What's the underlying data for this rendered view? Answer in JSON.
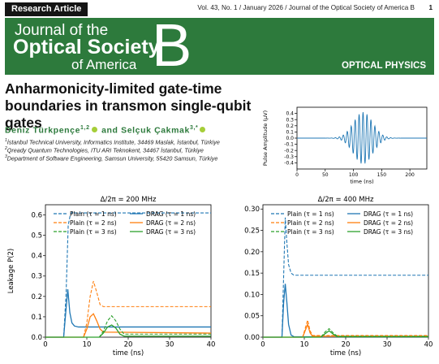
{
  "header": {
    "article_type": "Research Article",
    "running_head": "Vol. 43, No. 1 / January 2026 / Journal of the Optical Society of America B",
    "page_number": "1"
  },
  "banner": {
    "line1": "Journal of the",
    "line2": "Optical Society",
    "line3": "of America",
    "letter": "B",
    "section": "OPTICAL PHYSICS",
    "color": "#2d7a3c"
  },
  "article": {
    "title": "Anharmonicity-limited gate-time boundaries in transmon single-qubit gates",
    "author1": "Deniz Türkpençe",
    "author1_sup": "1,2",
    "connector": "and",
    "author2": "Selçuk Çakmak",
    "author2_sup": "3,*",
    "affiliations": [
      {
        "sup": "1",
        "text": "İstanbul Technical University, Informatics Institute, 34469 Maslak, İstanbul, Türkiye"
      },
      {
        "sup": "2",
        "text": "Qready Quantum Technologies, ITU ARI Teknokent, 34467 İstanbul, Türkiye"
      },
      {
        "sup": "3",
        "text": "Department of Software Engineering, Samsun University, 55420 Samsun, Türkiye"
      }
    ]
  },
  "chart_data": [
    {
      "id": "pulse",
      "type": "line",
      "title": "",
      "xlabel": "time (ns)",
      "ylabel": "Pulse Amplitude (μV)",
      "xlim": [
        0,
        230
      ],
      "ylim": [
        -0.5,
        0.5
      ],
      "xticks": [
        0,
        50,
        100,
        150,
        200
      ],
      "yticks": [
        -0.4,
        -0.3,
        -0.2,
        -0.1,
        0.0,
        0.1,
        0.2,
        0.3,
        0.4
      ],
      "ytick_labels": [
        "-0.4",
        "-0.3",
        "-0.2",
        "-0.1",
        "0.0",
        "0.1",
        "0.2",
        "0.3",
        "0.4"
      ],
      "color": "#1f77b4",
      "series": [
        {
          "carrier_period_ns": 7,
          "center_ns": 117,
          "envelope_sigma_ns": 17,
          "peak_amplitude": 0.42
        }
      ]
    },
    {
      "id": "leak200",
      "type": "line",
      "title": "Δ/2π = 200 MHz",
      "xlabel": "time (ns)",
      "ylabel": "Leakage P(2)",
      "xlim": [
        0,
        40
      ],
      "ylim": [
        0,
        0.65
      ],
      "xticks": [
        0,
        10,
        20,
        30,
        40
      ],
      "yticks": [
        0.0,
        0.1,
        0.2,
        0.3,
        0.4,
        0.5,
        0.6
      ],
      "ytick_labels": [
        "0.0",
        "0.1",
        "0.2",
        "0.3",
        "0.4",
        "0.5",
        "0.6"
      ],
      "legend": [
        "Plain (τ = 1 ns)",
        "DRAG (τ = 1 ns)",
        "Plain (τ = 2 ns)",
        "DRAG (τ = 2 ns)",
        "Plain (τ = 3 ns)",
        "DRAG (τ = 3 ns)"
      ],
      "legend_position": "top",
      "series": [
        {
          "color": "#1f77b4",
          "style": "dashed",
          "x": [
            0,
            4.4,
            5.0,
            5.5,
            6.0,
            6.5,
            7.0,
            40
          ],
          "y": [
            0,
            0,
            0.22,
            0.55,
            0.6,
            0.615,
            0.61,
            0.61
          ]
        },
        {
          "color": "#1f77b4",
          "style": "solid",
          "x": [
            0,
            4.4,
            4.9,
            5.4,
            5.9,
            6.4,
            7.0,
            8.0,
            40
          ],
          "y": [
            0,
            0,
            0.12,
            0.235,
            0.12,
            0.07,
            0.055,
            0.05,
            0.05
          ]
        },
        {
          "color": "#ff7f0e",
          "style": "dashed",
          "x": [
            0,
            9.2,
            10.0,
            10.8,
            11.6,
            12.4,
            13.2,
            14.0,
            40
          ],
          "y": [
            0,
            0,
            0.07,
            0.2,
            0.275,
            0.22,
            0.16,
            0.15,
            0.15
          ]
        },
        {
          "color": "#ff7f0e",
          "style": "solid",
          "x": [
            0,
            9.2,
            10.0,
            10.8,
            11.6,
            12.4,
            13.2,
            14.0,
            40
          ],
          "y": [
            0,
            0,
            0.04,
            0.1,
            0.115,
            0.08,
            0.04,
            0.025,
            0.02
          ]
        },
        {
          "color": "#2ca02c",
          "style": "dashed",
          "x": [
            0,
            13.0,
            14.0,
            15.0,
            16.0,
            17.0,
            18.0,
            19.0,
            40
          ],
          "y": [
            0,
            0,
            0.03,
            0.08,
            0.105,
            0.08,
            0.04,
            0.015,
            0.015
          ]
        },
        {
          "color": "#2ca02c",
          "style": "solid",
          "x": [
            0,
            13.0,
            14.0,
            15.0,
            16.0,
            17.0,
            18.0,
            19.0,
            40
          ],
          "y": [
            0,
            0,
            0.02,
            0.05,
            0.06,
            0.045,
            0.015,
            0.005,
            0.005
          ]
        }
      ]
    },
    {
      "id": "leak400",
      "type": "line",
      "title": "Δ/2π = 400 MHz",
      "xlabel": "time (ns)",
      "ylabel": "",
      "xlim": [
        0,
        40
      ],
      "ylim": [
        0,
        0.31
      ],
      "xticks": [
        0,
        10,
        20,
        30,
        40
      ],
      "yticks": [
        0.0,
        0.05,
        0.1,
        0.15,
        0.2,
        0.25,
        0.3
      ],
      "ytick_labels": [
        "0.00",
        "0.05",
        "0.10",
        "0.15",
        "0.20",
        "0.25",
        "0.30"
      ],
      "legend": [
        "Plain (τ = 1 ns)",
        "DRAG (τ = 1 ns)",
        "Plain (τ = 2 ns)",
        "DRAG (τ = 2 ns)",
        "Plain (τ = 3 ns)",
        "DRAG (τ = 3 ns)"
      ],
      "legend_position": "top",
      "series": [
        {
          "color": "#1f77b4",
          "style": "dashed",
          "x": [
            0,
            4.6,
            5.0,
            5.4,
            5.8,
            6.2,
            6.8,
            7.5,
            40
          ],
          "y": [
            0,
            0,
            0.14,
            0.28,
            0.22,
            0.17,
            0.15,
            0.145,
            0.145
          ]
        },
        {
          "color": "#1f77b4",
          "style": "solid",
          "x": [
            0,
            4.6,
            5.0,
            5.4,
            5.8,
            6.2,
            6.8,
            7.5,
            40
          ],
          "y": [
            0,
            0,
            0.08,
            0.125,
            0.08,
            0.03,
            0.005,
            0.001,
            0.001
          ]
        },
        {
          "color": "#ff7f0e",
          "style": "dashed",
          "x": [
            0,
            9.6,
            10.2,
            10.8,
            11.4,
            12.0,
            40
          ],
          "y": [
            0,
            0,
            0.02,
            0.04,
            0.015,
            0.004,
            0.004
          ]
        },
        {
          "color": "#ff7f0e",
          "style": "solid",
          "x": [
            0,
            9.6,
            10.2,
            10.8,
            11.4,
            12.0,
            40
          ],
          "y": [
            0,
            0,
            0.015,
            0.03,
            0.01,
            0.002,
            0.002
          ]
        },
        {
          "color": "#2ca02c",
          "style": "dashed",
          "x": [
            0,
            14.0,
            15.0,
            16.0,
            17.0,
            18.0,
            40
          ],
          "y": [
            0,
            0,
            0.012,
            0.02,
            0.01,
            0.002,
            0.002
          ]
        },
        {
          "color": "#2ca02c",
          "style": "solid",
          "x": [
            0,
            14.0,
            15.0,
            16.0,
            17.0,
            18.0,
            40
          ],
          "y": [
            0,
            0,
            0.008,
            0.015,
            0.007,
            0.001,
            0.001
          ]
        }
      ]
    }
  ]
}
